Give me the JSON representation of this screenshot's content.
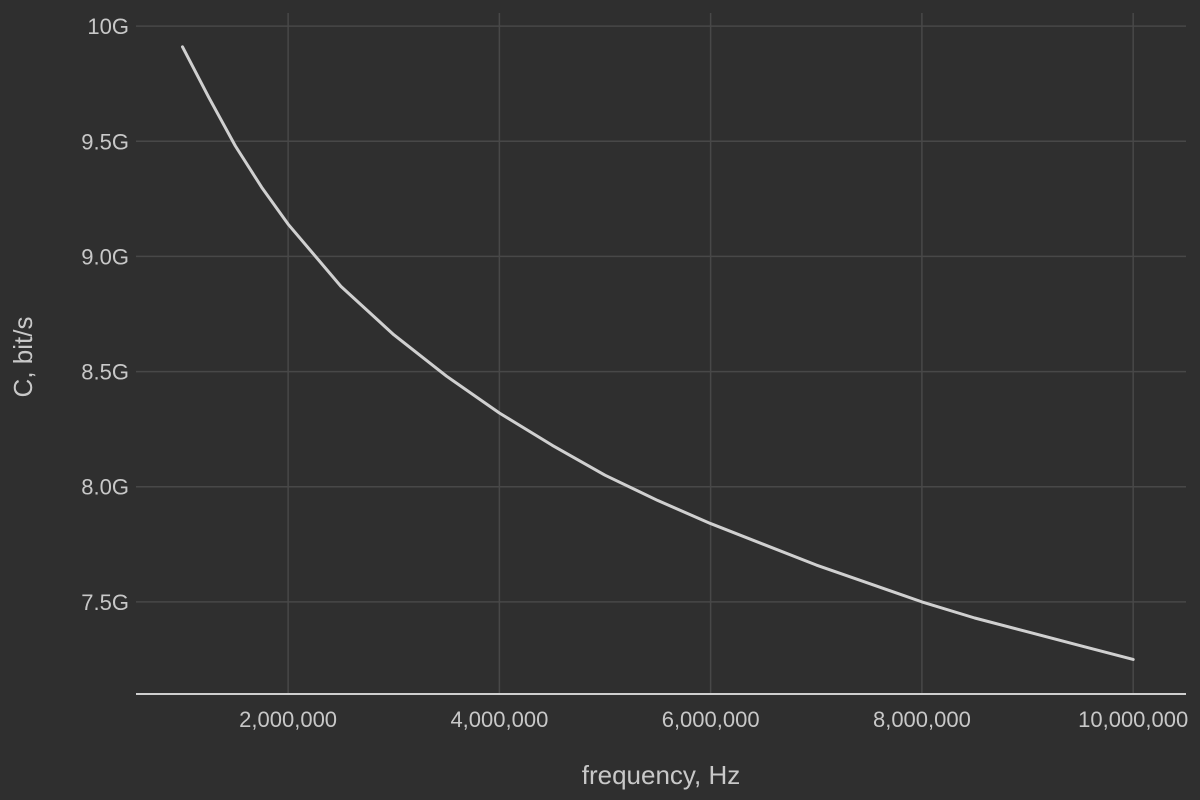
{
  "chart_data": {
    "type": "line",
    "xlabel": "frequency, Hz",
    "ylabel": "C, bit/s",
    "xlim": [
      560000,
      10500000
    ],
    "ylim": [
      7100000000,
      10070000000
    ],
    "x_ticks": [
      {
        "value": 2000000,
        "label": "2,000,000"
      },
      {
        "value": 4000000,
        "label": "4,000,000"
      },
      {
        "value": 6000000,
        "label": "6,000,000"
      },
      {
        "value": 8000000,
        "label": "8,000,000"
      },
      {
        "value": 10000000,
        "label": "10,000,000"
      }
    ],
    "y_ticks": [
      {
        "value": 7500000000,
        "label": "7.5G"
      },
      {
        "value": 8000000000,
        "label": "8.0G"
      },
      {
        "value": 8500000000,
        "label": "8.5G"
      },
      {
        "value": 9000000000,
        "label": "9.0G"
      },
      {
        "value": 9500000000,
        "label": "9.5G"
      },
      {
        "value": 10000000000,
        "label": "10G"
      }
    ],
    "grid": true,
    "series": [
      {
        "color": "#d0d0d0",
        "x": [
          1000000,
          1250000,
          1500000,
          1750000,
          2000000,
          2500000,
          3000000,
          3500000,
          4000000,
          4500000,
          5000000,
          5500000,
          6000000,
          6500000,
          7000000,
          7500000,
          8000000,
          8500000,
          9000000,
          9500000,
          10000000
        ],
        "values": [
          9910000000,
          9690000000,
          9480000000,
          9300000000,
          9140000000,
          8870000000,
          8660000000,
          8480000000,
          8320000000,
          8180000000,
          8050000000,
          7940000000,
          7840000000,
          7750000000,
          7660000000,
          7580000000,
          7500000000,
          7430000000,
          7370000000,
          7310000000,
          7250000000
        ]
      }
    ]
  },
  "colors": {
    "background": "#2f2f2f",
    "grid": "#484848",
    "axis": "#cfcfcf",
    "text": "#c8c8c8",
    "line": "#d0d0d0"
  }
}
